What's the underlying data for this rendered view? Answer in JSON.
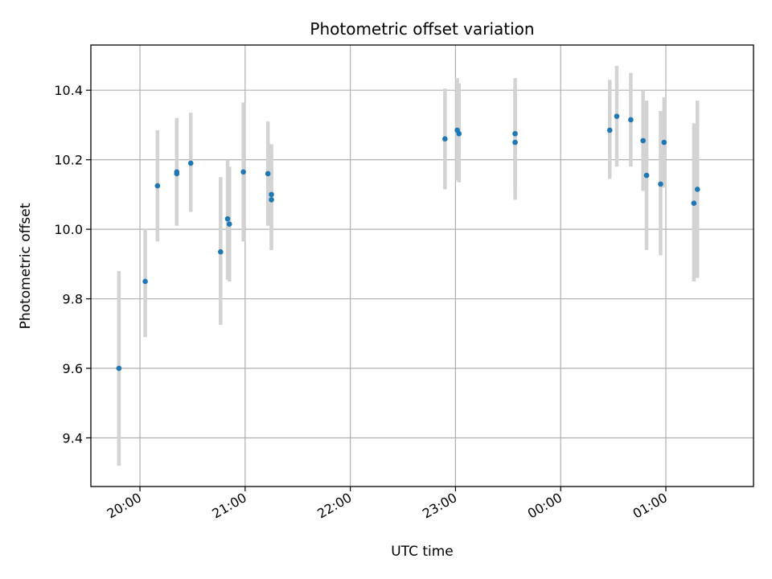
{
  "chart_data": {
    "type": "scatter",
    "title": "Photometric offset variation",
    "xlabel": "UTC time",
    "ylabel": "Photometric offset",
    "x_axis": "time",
    "xlim": [
      "19:32",
      "01:50"
    ],
    "ylim": [
      9.26,
      10.53
    ],
    "grid": true,
    "legend": "none",
    "x_ticks": [
      {
        "value": "20:00",
        "label": "20:00"
      },
      {
        "value": "21:00",
        "label": "21:00"
      },
      {
        "value": "22:00",
        "label": "22:00"
      },
      {
        "value": "23:00",
        "label": "23:00"
      },
      {
        "value": "00:00",
        "label": "00:00"
      },
      {
        "value": "01:00",
        "label": "01:00"
      }
    ],
    "y_ticks": [
      {
        "value": 9.4,
        "label": "9.4"
      },
      {
        "value": 9.6,
        "label": "9.6"
      },
      {
        "value": 9.8,
        "label": "9.8"
      },
      {
        "value": 10.0,
        "label": "10.0"
      },
      {
        "value": 10.2,
        "label": "10.2"
      },
      {
        "value": 10.4,
        "label": "10.4"
      }
    ],
    "point_color": "#1f77b4",
    "errorbar_color": "#d3d3d3",
    "points": [
      {
        "x": "19:48",
        "y": 9.6,
        "ylow": 9.32,
        "yhigh": 9.88
      },
      {
        "x": "20:03",
        "y": 9.85,
        "ylow": 9.69,
        "yhigh": 10.0
      },
      {
        "x": "20:10",
        "y": 10.125,
        "ylow": 9.965,
        "yhigh": 10.285
      },
      {
        "x": "20:21",
        "y": 10.165,
        "ylow": 10.01,
        "yhigh": 10.32
      },
      {
        "x": "20:21",
        "y": 10.16,
        "ylow": 10.015,
        "yhigh": 10.31
      },
      {
        "x": "20:29",
        "y": 10.19,
        "ylow": 10.05,
        "yhigh": 10.335
      },
      {
        "x": "20:46",
        "y": 9.935,
        "ylow": 9.725,
        "yhigh": 10.15
      },
      {
        "x": "20:50",
        "y": 10.03,
        "ylow": 9.855,
        "yhigh": 10.2
      },
      {
        "x": "20:51",
        "y": 10.015,
        "ylow": 9.85,
        "yhigh": 10.18
      },
      {
        "x": "20:59",
        "y": 10.165,
        "ylow": 9.965,
        "yhigh": 10.365
      },
      {
        "x": "21:13",
        "y": 10.16,
        "ylow": 10.01,
        "yhigh": 10.31
      },
      {
        "x": "21:15",
        "y": 10.1,
        "ylow": 9.955,
        "yhigh": 10.245
      },
      {
        "x": "21:15",
        "y": 10.085,
        "ylow": 9.94,
        "yhigh": 10.235
      },
      {
        "x": "22:54",
        "y": 10.26,
        "ylow": 10.115,
        "yhigh": 10.405
      },
      {
        "x": "23:01",
        "y": 10.285,
        "ylow": 10.14,
        "yhigh": 10.435
      },
      {
        "x": "23:02",
        "y": 10.275,
        "ylow": 10.135,
        "yhigh": 10.42
      },
      {
        "x": "23:34",
        "y": 10.275,
        "ylow": 10.12,
        "yhigh": 10.435
      },
      {
        "x": "23:34",
        "y": 10.25,
        "ylow": 10.085,
        "yhigh": 10.41
      },
      {
        "x": "00:28",
        "y": 10.285,
        "ylow": 10.145,
        "yhigh": 10.43
      },
      {
        "x": "00:32",
        "y": 10.325,
        "ylow": 10.18,
        "yhigh": 10.47
      },
      {
        "x": "00:40",
        "y": 10.315,
        "ylow": 10.18,
        "yhigh": 10.45
      },
      {
        "x": "00:47",
        "y": 10.255,
        "ylow": 10.11,
        "yhigh": 10.4
      },
      {
        "x": "00:49",
        "y": 10.155,
        "ylow": 9.94,
        "yhigh": 10.37
      },
      {
        "x": "00:57",
        "y": 10.13,
        "ylow": 9.925,
        "yhigh": 10.34
      },
      {
        "x": "00:59",
        "y": 10.25,
        "ylow": 10.12,
        "yhigh": 10.38
      },
      {
        "x": "01:16",
        "y": 10.075,
        "ylow": 9.85,
        "yhigh": 10.305
      },
      {
        "x": "01:18",
        "y": 10.115,
        "ylow": 9.86,
        "yhigh": 10.37
      }
    ]
  }
}
